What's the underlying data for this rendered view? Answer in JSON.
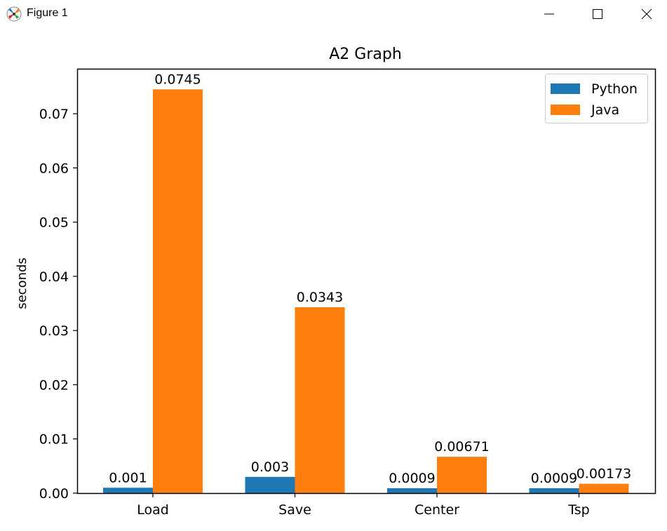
{
  "window": {
    "title": "Figure 1",
    "icon": "matplotlib-icon",
    "controls": [
      "minimize-icon",
      "maximize-icon",
      "close-icon"
    ]
  },
  "chart_data": {
    "type": "bar",
    "title": "A2 Graph",
    "xlabel": "",
    "ylabel": "seconds",
    "categories": [
      "Load",
      "Save",
      "Center",
      "Tsp"
    ],
    "series": [
      {
        "name": "Python",
        "values": [
          0.001,
          0.003,
          0.0009,
          0.0009
        ],
        "labels": [
          "0.001",
          "0.003",
          "0.0009",
          "0.0009"
        ],
        "color": "#1f77b4"
      },
      {
        "name": "Java",
        "values": [
          0.0745,
          0.0343,
          0.00671,
          0.00173
        ],
        "labels": [
          "0.0745",
          "0.0343",
          "0.00671",
          "0.00173"
        ],
        "color": "#ff7f0e"
      }
    ],
    "ylim": [
      0,
      0.0783
    ],
    "yticks": [
      0,
      0.01,
      0.02,
      0.03,
      0.04,
      0.05,
      0.06,
      0.07
    ],
    "ytick_labels": [
      "0.00",
      "0.01",
      "0.02",
      "0.03",
      "0.04",
      "0.05",
      "0.06",
      "0.07"
    ],
    "grid": false,
    "legend_position": "top-right"
  }
}
